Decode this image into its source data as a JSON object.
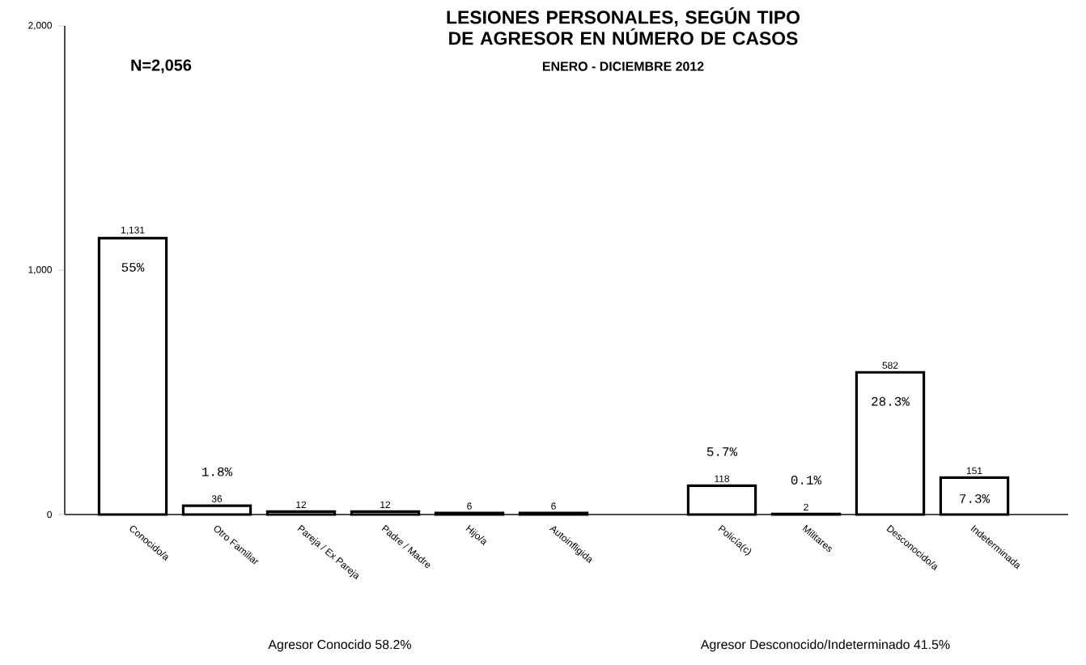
{
  "chart_data": {
    "type": "bar",
    "title": "LESIONES PERSONALES, SEGÚN TIPO DE AGRESOR EN NÚMERO DE CASOS",
    "subtitle": "ENERO - DICIEMBRE 2012",
    "categories": [
      "Conocido/a",
      "Otro Familiar",
      "Pareja / Ex Pareja",
      "Padre / Madre",
      "Hijo/a",
      "Autoinfligida",
      null,
      "Policía(c)",
      "Militares",
      "Desconocido/a",
      "Indeterminada"
    ],
    "values": [
      1131,
      36,
      12,
      12,
      6,
      6,
      null,
      118,
      2,
      582,
      151
    ],
    "value_labels": [
      "1,131",
      "36",
      "12",
      "12",
      "6",
      "6",
      null,
      "118",
      "2",
      "582",
      "151"
    ],
    "color": "#ffffff",
    "ylim": [
      0,
      2000
    ],
    "yticks": [
      0,
      {
        "value": 1000,
        "label": "1,000"
      },
      {
        "value": 2000,
        "label": "2,000"
      }
    ],
    "grid": false,
    "annotations": [
      "N=2,056",
      {
        "text": "55%",
        "x": "Conocido/a",
        "y": 1131
      },
      {
        "text": "1.8%",
        "x": "Otro Familiar",
        "y": 36
      },
      {
        "text": "5.7%",
        "x": "Policía(c)",
        "y": 118
      },
      {
        "text": "0.1%",
        "x": "Militares",
        "y": 2
      },
      {
        "text": "28.3%",
        "x": "Desconocido/a",
        "y": 582
      },
      {
        "text": "7.3%",
        "x": "Indeterminada",
        "y": 151
      },
      "Agresor Conocido 58.2%",
      "Agresor Desconocido/Indeterminado 41.5%"
    ]
  }
}
